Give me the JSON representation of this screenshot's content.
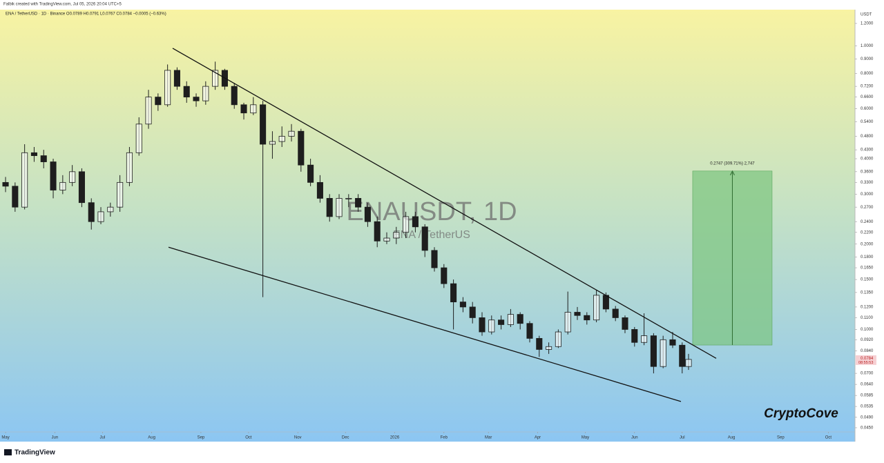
{
  "header": "Falbik created with TradingView.com, Jul 05, 2026 20:04 UTC+5",
  "footer": "TradingView",
  "chart_data": {
    "type": "candlestick",
    "title": "ENA / TetherUSD · 1D · Binance  O0.0789  H0.0791  L0.0767  C0.0784  −0.0005 (−0.63%)",
    "watermark": "ENAUSDT, 1D",
    "watermark_subtitle": "ENA / TetherUS",
    "y_unit": "USDT",
    "signature": "CryptoCove",
    "log_scale": true,
    "grid": false,
    "candle_color": "#1e1e1e",
    "line_color": "#111111",
    "x": [
      0,
      6,
      12,
      18,
      24,
      30,
      36,
      42,
      48,
      54,
      60,
      66,
      72,
      78,
      84,
      90,
      96,
      102,
      108,
      114,
      120,
      126,
      132,
      138,
      144,
      150,
      156,
      162,
      168,
      174,
      180,
      186,
      192,
      198,
      204,
      210,
      216,
      222,
      228,
      234,
      240,
      246,
      252,
      258,
      264,
      270,
      276,
      282,
      288,
      294,
      300,
      306,
      312,
      318,
      324,
      330,
      336,
      342,
      348,
      354,
      360,
      366,
      372,
      378,
      384,
      390,
      396,
      402,
      408,
      414,
      420,
      426,
      430
    ],
    "open": [
      0.33,
      0.32,
      0.27,
      0.42,
      0.41,
      0.39,
      0.31,
      0.33,
      0.36,
      0.28,
      0.24,
      0.26,
      0.27,
      0.33,
      0.42,
      0.53,
      0.66,
      0.62,
      0.82,
      0.72,
      0.66,
      0.64,
      0.72,
      0.82,
      0.72,
      0.62,
      0.58,
      0.62,
      0.45,
      0.46,
      0.48,
      0.5,
      0.38,
      0.33,
      0.29,
      0.25,
      0.29,
      0.29,
      0.27,
      0.24,
      0.205,
      0.21,
      0.22,
      0.25,
      0.23,
      0.19,
      0.165,
      0.145,
      0.125,
      0.12,
      0.11,
      0.098,
      0.108,
      0.104,
      0.113,
      0.105,
      0.093,
      0.085,
      0.087,
      0.098,
      0.115,
      0.112,
      0.108,
      0.132,
      0.118,
      0.11,
      0.1,
      0.09,
      0.095,
      0.074,
      0.092,
      0.088,
      0.074
    ],
    "high": [
      0.345,
      0.33,
      0.45,
      0.44,
      0.43,
      0.4,
      0.35,
      0.38,
      0.37,
      0.29,
      0.27,
      0.28,
      0.35,
      0.44,
      0.56,
      0.7,
      0.68,
      0.86,
      0.84,
      0.75,
      0.68,
      0.75,
      0.88,
      0.83,
      0.74,
      0.63,
      0.66,
      0.64,
      0.5,
      0.52,
      0.53,
      0.51,
      0.4,
      0.35,
      0.3,
      0.3,
      0.3,
      0.3,
      0.28,
      0.25,
      0.22,
      0.23,
      0.26,
      0.26,
      0.235,
      0.195,
      0.17,
      0.15,
      0.13,
      0.125,
      0.115,
      0.112,
      0.112,
      0.118,
      0.115,
      0.107,
      0.095,
      0.09,
      0.1,
      0.136,
      0.12,
      0.115,
      0.138,
      0.135,
      0.121,
      0.112,
      0.102,
      0.114,
      0.097,
      0.095,
      0.098,
      0.09,
      0.082
    ],
    "low": [
      0.305,
      0.26,
      0.265,
      0.39,
      0.37,
      0.29,
      0.3,
      0.32,
      0.27,
      0.225,
      0.235,
      0.25,
      0.26,
      0.32,
      0.41,
      0.51,
      0.59,
      0.61,
      0.7,
      0.63,
      0.61,
      0.62,
      0.7,
      0.7,
      0.6,
      0.55,
      0.57,
      0.13,
      0.4,
      0.44,
      0.46,
      0.36,
      0.32,
      0.28,
      0.24,
      0.245,
      0.27,
      0.26,
      0.23,
      0.195,
      0.2,
      0.2,
      0.21,
      0.22,
      0.18,
      0.16,
      0.14,
      0.1,
      0.115,
      0.105,
      0.095,
      0.096,
      0.1,
      0.102,
      0.1,
      0.09,
      0.08,
      0.082,
      0.086,
      0.096,
      0.108,
      0.104,
      0.106,
      0.115,
      0.107,
      0.097,
      0.087,
      0.088,
      0.07,
      0.073,
      0.086,
      0.07,
      0.072
    ],
    "close": [
      0.32,
      0.27,
      0.42,
      0.41,
      0.39,
      0.31,
      0.33,
      0.36,
      0.28,
      0.24,
      0.26,
      0.27,
      0.33,
      0.42,
      0.53,
      0.66,
      0.62,
      0.82,
      0.72,
      0.66,
      0.64,
      0.72,
      0.82,
      0.72,
      0.62,
      0.58,
      0.62,
      0.45,
      0.46,
      0.48,
      0.5,
      0.38,
      0.33,
      0.29,
      0.25,
      0.29,
      0.29,
      0.27,
      0.24,
      0.205,
      0.21,
      0.22,
      0.25,
      0.23,
      0.19,
      0.165,
      0.145,
      0.125,
      0.12,
      0.11,
      0.098,
      0.108,
      0.104,
      0.113,
      0.105,
      0.093,
      0.085,
      0.087,
      0.098,
      0.115,
      0.112,
      0.108,
      0.132,
      0.118,
      0.11,
      0.1,
      0.09,
      0.095,
      0.074,
      0.092,
      0.088,
      0.074,
      0.0784
    ],
    "last_price": 0.0784,
    "countdown": "08:55:53",
    "trendlines": [
      {
        "x": [
          105.2,
          447.4
        ],
        "y": [
          0.981,
          0.0791
        ]
      },
      {
        "x": [
          102.6,
          425.2
        ],
        "y": [
          0.195,
          0.0557
        ]
      }
    ],
    "measurement": {
      "label": "0.2747 (309.71%) 2,747",
      "x": [
        432.6,
        482.6
      ],
      "y": [
        0.0881,
        0.362
      ],
      "color": "#7cc47f"
    },
    "xlim": [
      -3.5,
      534.8
    ],
    "xticks": [
      {
        "value": 0,
        "label": "May"
      },
      {
        "value": 31,
        "label": "Jun"
      },
      {
        "value": 61,
        "label": "Jul"
      },
      {
        "value": 92,
        "label": "Aug"
      },
      {
        "value": 123,
        "label": "Sep"
      },
      {
        "value": 153,
        "label": "Oct"
      },
      {
        "value": 184,
        "label": "Nov"
      },
      {
        "value": 214,
        "label": "Dec"
      },
      {
        "value": 245,
        "label": "2026"
      },
      {
        "value": 276,
        "label": "Feb"
      },
      {
        "value": 304,
        "label": "Mar"
      },
      {
        "value": 335,
        "label": "Apr"
      },
      {
        "value": 365,
        "label": "May"
      },
      {
        "value": 396,
        "label": "Jun"
      },
      {
        "value": 426,
        "label": "Jul"
      },
      {
        "value": 457,
        "label": "Aug"
      },
      {
        "value": 488,
        "label": "Sep"
      },
      {
        "value": 518,
        "label": "Oct"
      }
    ],
    "ylim": [
      0.0435,
      1.342
    ],
    "yticks": [
      {
        "value": 1.2,
        "label": "1.2000"
      },
      {
        "value": 1.0,
        "label": "1.0000"
      },
      {
        "value": 0.9,
        "label": "0.9000"
      },
      {
        "value": 0.8,
        "label": "0.8000"
      },
      {
        "value": 0.72,
        "label": "0.7200"
      },
      {
        "value": 0.66,
        "label": "0.6600"
      },
      {
        "value": 0.6,
        "label": "0.6000"
      },
      {
        "value": 0.54,
        "label": "0.5400"
      },
      {
        "value": 0.48,
        "label": "0.4800"
      },
      {
        "value": 0.43,
        "label": "0.4300"
      },
      {
        "value": 0.4,
        "label": "0.4000"
      },
      {
        "value": 0.36,
        "label": "0.3600"
      },
      {
        "value": 0.33,
        "label": "0.3300"
      },
      {
        "value": 0.3,
        "label": "0.3000"
      },
      {
        "value": 0.27,
        "label": "0.2700"
      },
      {
        "value": 0.24,
        "label": "0.2400"
      },
      {
        "value": 0.22,
        "label": "0.2200"
      },
      {
        "value": 0.2,
        "label": "0.2000"
      },
      {
        "value": 0.18,
        "label": "0.1800"
      },
      {
        "value": 0.165,
        "label": "0.1650"
      },
      {
        "value": 0.15,
        "label": "0.1500"
      },
      {
        "value": 0.135,
        "label": "0.1350"
      },
      {
        "value": 0.12,
        "label": "0.1200"
      },
      {
        "value": 0.11,
        "label": "0.1100"
      },
      {
        "value": 0.1,
        "label": "0.1000"
      },
      {
        "value": 0.092,
        "label": "0.0920"
      },
      {
        "value": 0.084,
        "label": "0.0840"
      },
      {
        "value": 0.07,
        "label": "0.0700"
      },
      {
        "value": 0.064,
        "label": "0.0640"
      },
      {
        "value": 0.0585,
        "label": "0.0585"
      },
      {
        "value": 0.0535,
        "label": "0.0535"
      },
      {
        "value": 0.049,
        "label": "0.0490"
      },
      {
        "value": 0.045,
        "label": "0.0450"
      }
    ]
  }
}
